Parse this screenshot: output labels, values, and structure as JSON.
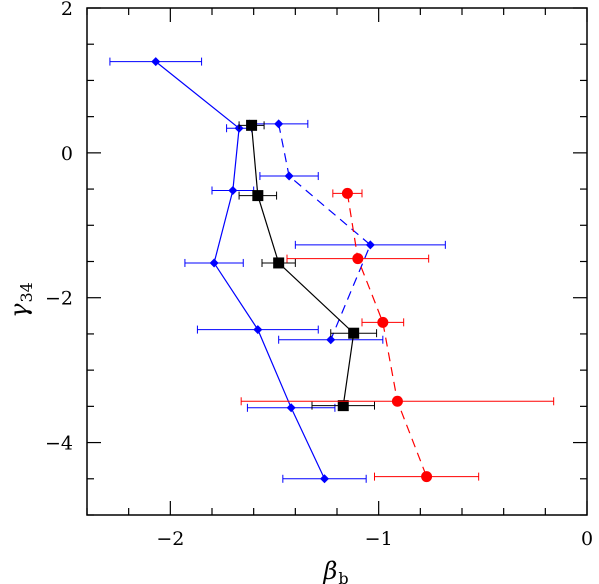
{
  "chart_data": {
    "type": "scatter",
    "title": "",
    "xlabel": "β",
    "xlabel_sub": "b",
    "ylabel": "γ",
    "ylabel_sub": "34",
    "xlim": [
      -2.4,
      0
    ],
    "ylim": [
      -5,
      2
    ],
    "xticks": [
      -2,
      -1,
      0
    ],
    "xtick_labels": [
      "−2",
      "−1",
      "0"
    ],
    "yticks": [
      2,
      0,
      -2,
      -4
    ],
    "ytick_labels": [
      "2",
      "0",
      "−2",
      "−4"
    ],
    "grid": false,
    "legend": "none",
    "series": [
      {
        "marker": "diamond",
        "line": "solid",
        "color": "#0000ff",
        "points": [
          {
            "x": -2.07,
            "y": 1.26,
            "xerr": 0.22
          },
          {
            "x": -1.67,
            "y": 0.34,
            "xerr": 0.06
          },
          {
            "x": -1.7,
            "y": -0.52,
            "xerr": 0.1
          },
          {
            "x": -1.79,
            "y": -1.52,
            "xerr": 0.14
          },
          {
            "x": -1.58,
            "y": -2.44,
            "xerr": 0.29
          },
          {
            "x": -1.42,
            "y": -3.52,
            "xerr": 0.21
          },
          {
            "x": -1.26,
            "y": -4.5,
            "xerr": 0.2
          }
        ]
      },
      {
        "marker": "diamond",
        "line": "dashed",
        "color": "#0000ff",
        "points": [
          {
            "x": -1.48,
            "y": 0.4,
            "xerr": 0.14
          },
          {
            "x": -1.43,
            "y": -0.32,
            "xerr": 0.14
          },
          {
            "x": -1.04,
            "y": -1.27,
            "xerr": 0.36
          },
          {
            "x": -1.23,
            "y": -2.58,
            "xerr": 0.25
          }
        ]
      },
      {
        "marker": "square",
        "line": "solid",
        "color": "#000000",
        "points": [
          {
            "x": -1.61,
            "y": 0.38,
            "xerr": 0.06
          },
          {
            "x": -1.58,
            "y": -0.59,
            "xerr": 0.09
          },
          {
            "x": -1.48,
            "y": -1.52,
            "xerr": 0.08
          },
          {
            "x": -1.12,
            "y": -2.49,
            "xerr": 0.11
          },
          {
            "x": -1.17,
            "y": -3.49,
            "xerr": 0.15
          }
        ]
      },
      {
        "marker": "circle",
        "line": "dashed",
        "color": "#ff0000",
        "points": [
          {
            "x": -1.15,
            "y": -0.56,
            "xerr": 0.07
          },
          {
            "x": -1.1,
            "y": -1.46,
            "xerr": 0.34
          },
          {
            "x": -0.98,
            "y": -2.34,
            "xerr": 0.1
          },
          {
            "x": -0.91,
            "y": -3.43,
            "xerr": 0.75
          },
          {
            "x": -0.77,
            "y": -4.47,
            "xerr": 0.25
          }
        ]
      }
    ]
  }
}
